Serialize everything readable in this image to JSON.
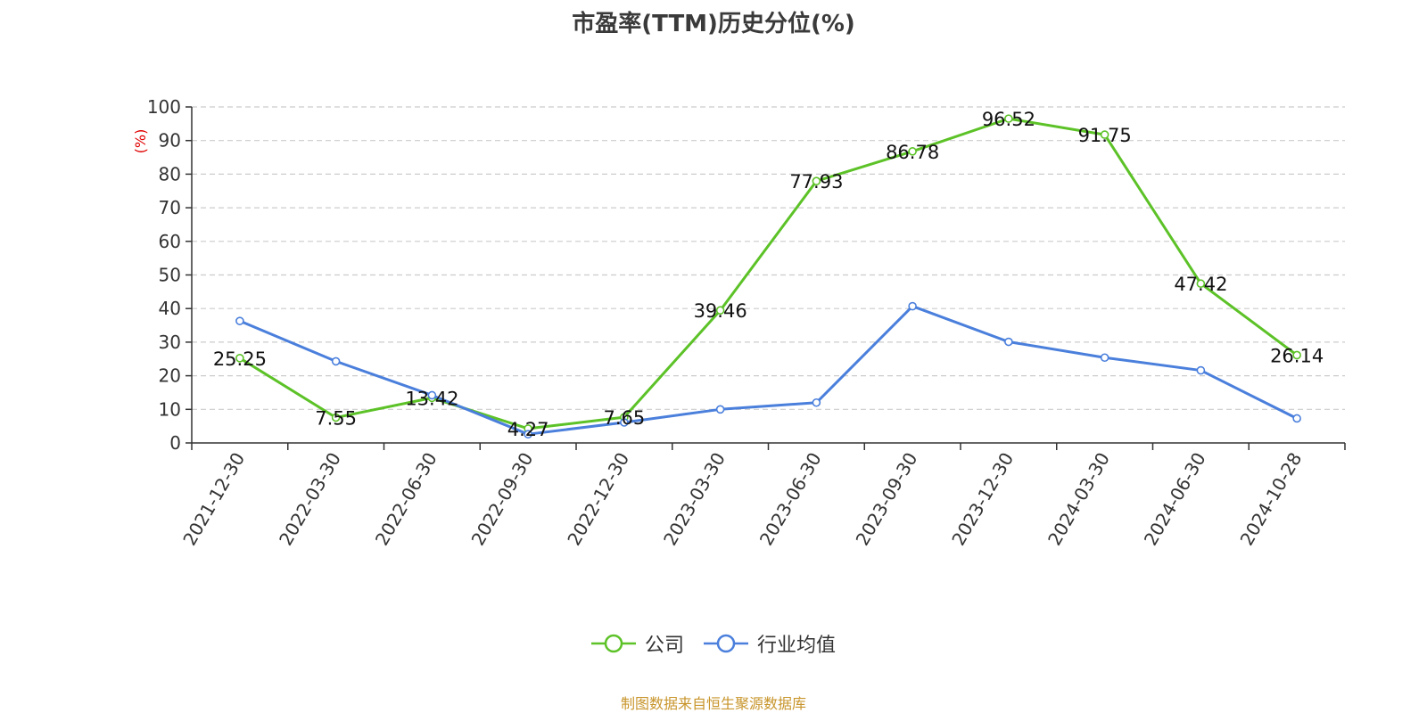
{
  "source_note": "制图数据来自恒生聚源数据库",
  "chart_data": {
    "type": "line",
    "title": "市盈率(TTM)历史分位(%)",
    "xlabel": "",
    "ylabel": "(%)",
    "ylim": [
      0,
      100
    ],
    "yticks": [
      0,
      10,
      20,
      30,
      40,
      50,
      60,
      70,
      80,
      90,
      100
    ],
    "grid": true,
    "legend_position": "bottom-center",
    "categories": [
      "2021-12-30",
      "2022-03-30",
      "2022-06-30",
      "2022-09-30",
      "2022-12-30",
      "2023-03-30",
      "2023-06-30",
      "2023-09-30",
      "2023-12-30",
      "2024-03-30",
      "2024-06-30",
      "2024-10-28"
    ],
    "series": [
      {
        "name": "公司",
        "color": "#5cc227",
        "values": [
          25.25,
          7.55,
          13.42,
          4.27,
          7.65,
          39.46,
          77.93,
          86.78,
          96.52,
          91.75,
          47.42,
          26.14
        ],
        "data_labels": [
          "25.25",
          "7.55",
          "13.42",
          "4.27",
          "7.65",
          "39.46",
          "77.93",
          "86.78",
          "96.52",
          "91.75",
          "47.42",
          "26.14"
        ]
      },
      {
        "name": "行业均值",
        "color": "#4a7fdc",
        "values": [
          36.3,
          24.3,
          14.2,
          2.6,
          6.1,
          10.0,
          12.0,
          40.7,
          30.1,
          25.4,
          21.6,
          7.3
        ]
      }
    ]
  }
}
